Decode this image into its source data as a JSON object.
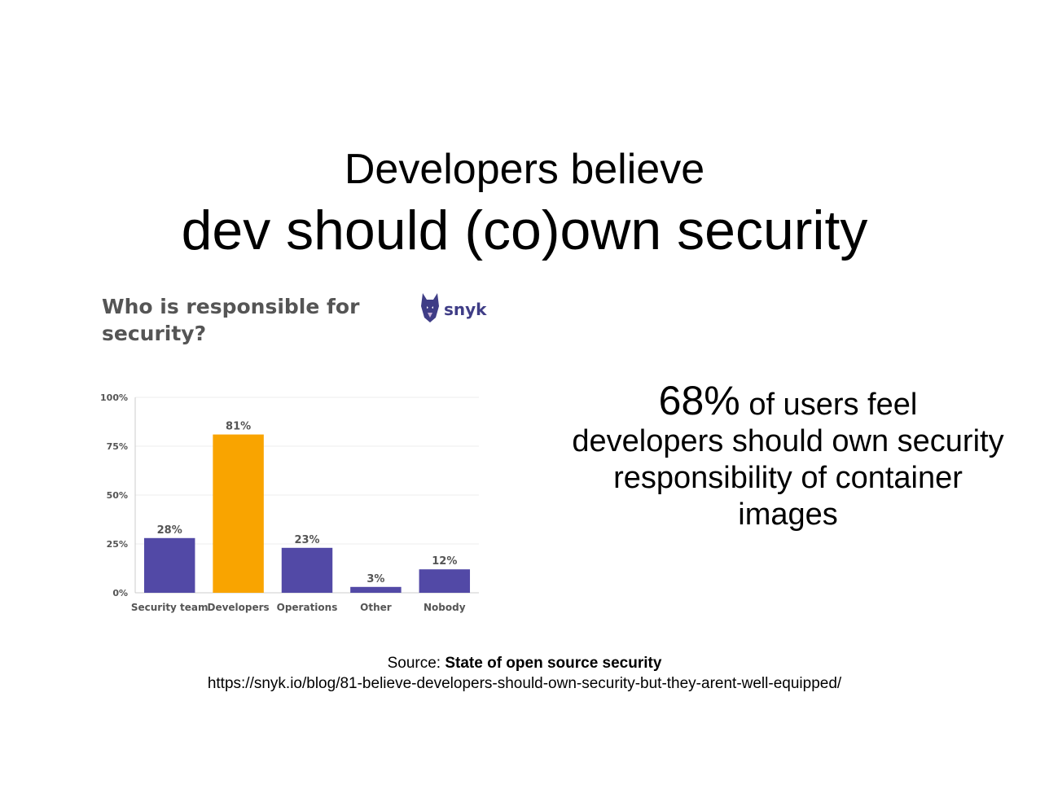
{
  "slide": {
    "title_line1": "Developers believe",
    "title_line2": "dev should (co)own security"
  },
  "chart_panel": {
    "heading_line1": "Who is responsible for",
    "heading_line2": "security?",
    "logo_text": "snyk",
    "logo_icon": "doberman-icon"
  },
  "callout": {
    "stat": "68%",
    "text_line1": "of users feel",
    "text_line2": "developers should own security",
    "text_line3": "responsibility of container",
    "text_line4": "images"
  },
  "footer": {
    "source_label": "Source:",
    "source_title": "State of open source security",
    "url": "https://snyk.io/blog/81-believe-developers-should-own-security-but-they-arent-well-equipped/"
  },
  "colors": {
    "bar_default": "#5249a6",
    "bar_highlight": "#f9a400",
    "axis_text": "#555555",
    "grid": "#eeeeee"
  },
  "chart_data": {
    "type": "bar",
    "categories": [
      "Security team",
      "Developers",
      "Operations",
      "Other",
      "Nobody"
    ],
    "values": [
      28,
      81,
      23,
      3,
      12
    ],
    "value_labels": [
      "28%",
      "81%",
      "23%",
      "3%",
      "12%"
    ],
    "highlight_index": 1,
    "ylim": [
      0,
      100
    ],
    "yticks": [
      0,
      25,
      50,
      75,
      100
    ],
    "ytick_labels": [
      "0%",
      "25%",
      "50%",
      "75%",
      "100%"
    ],
    "grid": true,
    "title": "Who is responsible for security?",
    "xlabel": "",
    "ylabel": ""
  }
}
